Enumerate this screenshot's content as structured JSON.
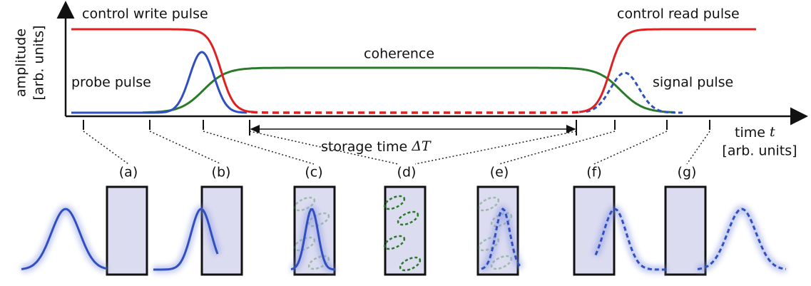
{
  "axes": {
    "y_label": "amplitude",
    "y_unit": "[arb. units]",
    "x_label": "time",
    "x_symbol": "t",
    "x_unit": "[arb. units]"
  },
  "curves": {
    "control_write": "control write pulse",
    "control_read": "control read pulse",
    "coherence": "coherence",
    "probe": "probe pulse",
    "signal": "signal pulse"
  },
  "storage": {
    "text": "storage time",
    "symbol": "ΔT"
  },
  "panels": [
    "(a)",
    "(b)",
    "(c)",
    "(d)",
    "(e)",
    "(f)",
    "(g)"
  ]
}
